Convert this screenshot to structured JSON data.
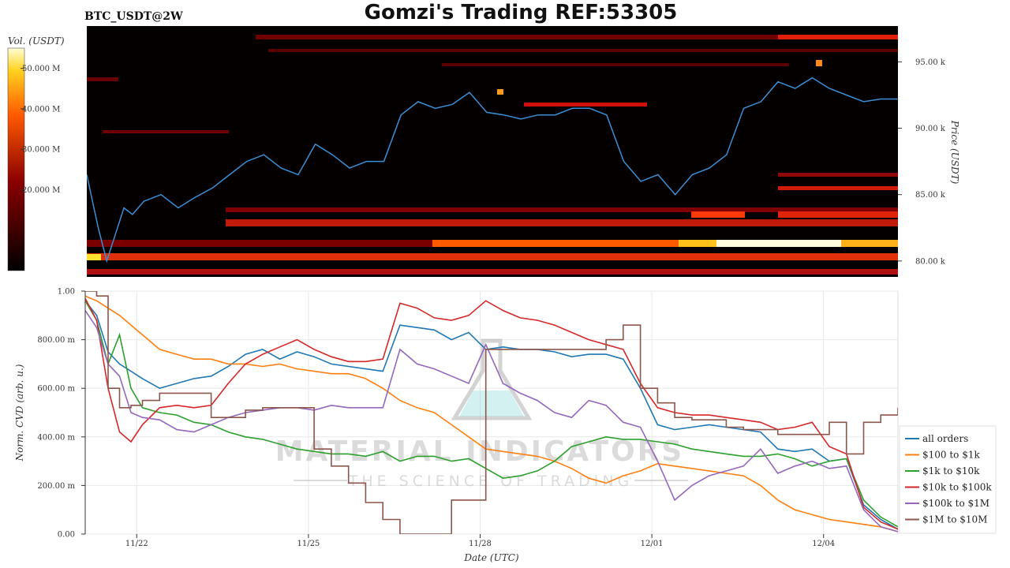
{
  "title": "Gomzi's Trading REF:53305",
  "subtitle": "BTC_USDT@2W",
  "watermark": {
    "main": "MATERIAL INDICATORS",
    "sub": "THE SCIENCE OF TRADING"
  },
  "chart_data": [
    {
      "type": "heatmap",
      "panel": "top",
      "ylabel": "Price (USDT)",
      "ylim": [
        78800,
        97700
      ],
      "yticks": [
        80000,
        85000,
        90000,
        95000
      ],
      "ytick_labels": [
        "80.00 k",
        "85.00 k",
        "90.00 k",
        "95.00 k"
      ],
      "colorbar": {
        "label": "Vol. (USDT)",
        "range": [
          0,
          55000000
        ],
        "ticks": [
          20000000,
          30000000,
          40000000,
          50000000
        ],
        "tick_labels": [
          "20.000 M",
          "30.000 M",
          "40.000 M",
          "50.000 M"
        ]
      },
      "price_series": {
        "name": "price",
        "color": "#3a8fd6",
        "x": [
          0,
          0.1,
          0.2,
          0.35,
          0.5,
          0.65,
          0.8,
          1.0,
          1.3,
          1.6,
          1.9,
          2.2,
          2.5,
          2.8,
          3.1,
          3.4,
          3.7,
          4.0,
          4.3,
          4.6,
          4.9,
          5.2,
          5.5,
          5.8,
          6.1,
          6.4,
          6.7,
          7.0,
          7.3,
          7.6,
          7.9,
          8.2,
          8.5,
          8.8,
          9.1,
          9.4,
          9.7,
          10.0,
          10.3,
          10.6,
          10.9,
          11.2,
          11.5,
          11.8,
          12.1,
          12.4,
          12.7,
          13.0,
          13.3,
          13.6,
          13.9,
          14.2
        ],
        "y": [
          86500,
          84500,
          82500,
          80000,
          82000,
          84000,
          83500,
          84500,
          85000,
          84000,
          84800,
          85500,
          86500,
          87500,
          88000,
          87000,
          86500,
          88800,
          88000,
          87000,
          87500,
          87500,
          91000,
          92000,
          91500,
          91800,
          92700,
          91200,
          91000,
          90700,
          91000,
          91000,
          91500,
          91500,
          91000,
          87500,
          86000,
          86500,
          85000,
          86500,
          87000,
          88000,
          91500,
          92000,
          93500,
          93000,
          93800,
          93000,
          92500,
          92000,
          92200,
          92200
        ]
      },
      "xlim": [
        0,
        14.2
      ]
    },
    {
      "type": "line",
      "panel": "bottom",
      "xlabel": "Date (UTC)",
      "ylabel": "Norm. CVD (arb. u.)",
      "xlim": [
        0,
        14.2
      ],
      "ylim": [
        0,
        1
      ],
      "x_ticks": [
        0.9,
        3.9,
        6.9,
        9.9,
        12.9
      ],
      "x_tick_labels": [
        "11/22",
        "11/25",
        "11/28",
        "12/01",
        "12/04"
      ],
      "yticks": [
        0,
        0.2,
        0.4,
        0.6,
        0.8,
        1
      ],
      "ytick_labels": [
        "0.00",
        "200.00 m",
        "400.00 m",
        "600.00 m",
        "800.00 m",
        "1.00"
      ],
      "x": [
        0,
        0.2,
        0.4,
        0.6,
        0.8,
        1.0,
        1.3,
        1.6,
        1.9,
        2.2,
        2.5,
        2.8,
        3.1,
        3.4,
        3.7,
        4.0,
        4.3,
        4.6,
        4.9,
        5.2,
        5.5,
        5.8,
        6.1,
        6.4,
        6.7,
        7.0,
        7.3,
        7.6,
        7.9,
        8.2,
        8.5,
        8.8,
        9.1,
        9.4,
        9.7,
        10.0,
        10.3,
        10.6,
        10.9,
        11.2,
        11.5,
        11.8,
        12.1,
        12.4,
        12.7,
        13.0,
        13.3,
        13.6,
        13.9,
        14.2
      ],
      "series": [
        {
          "name": "all orders",
          "color": "#1f77b4",
          "values": [
            0.96,
            0.9,
            0.75,
            0.7,
            0.67,
            0.64,
            0.6,
            0.62,
            0.64,
            0.65,
            0.69,
            0.74,
            0.76,
            0.72,
            0.75,
            0.73,
            0.7,
            0.69,
            0.68,
            0.67,
            0.86,
            0.85,
            0.84,
            0.8,
            0.83,
            0.76,
            0.77,
            0.76,
            0.76,
            0.75,
            0.73,
            0.74,
            0.74,
            0.72,
            0.6,
            0.45,
            0.43,
            0.44,
            0.45,
            0.44,
            0.43,
            0.42,
            0.35,
            0.34,
            0.35,
            0.3,
            0.31,
            0.12,
            0.06,
            0.02
          ]
        },
        {
          "name": "$100 to $1k",
          "color": "#ff7f0e",
          "values": [
            0.98,
            0.96,
            0.93,
            0.9,
            0.86,
            0.82,
            0.76,
            0.74,
            0.72,
            0.72,
            0.7,
            0.7,
            0.69,
            0.7,
            0.68,
            0.67,
            0.66,
            0.66,
            0.64,
            0.6,
            0.55,
            0.52,
            0.5,
            0.45,
            0.4,
            0.35,
            0.34,
            0.33,
            0.32,
            0.3,
            0.27,
            0.23,
            0.21,
            0.24,
            0.26,
            0.29,
            0.28,
            0.27,
            0.26,
            0.25,
            0.24,
            0.2,
            0.14,
            0.1,
            0.08,
            0.06,
            0.05,
            0.04,
            0.03,
            0.01
          ]
        },
        {
          "name": "$1k to $10k",
          "color": "#2ca02c",
          "values": [
            0.96,
            0.88,
            0.7,
            0.82,
            0.6,
            0.52,
            0.5,
            0.49,
            0.46,
            0.45,
            0.42,
            0.4,
            0.39,
            0.37,
            0.35,
            0.34,
            0.33,
            0.33,
            0.32,
            0.34,
            0.3,
            0.32,
            0.32,
            0.3,
            0.31,
            0.27,
            0.23,
            0.24,
            0.26,
            0.3,
            0.36,
            0.38,
            0.4,
            0.39,
            0.39,
            0.38,
            0.37,
            0.35,
            0.34,
            0.33,
            0.32,
            0.32,
            0.33,
            0.31,
            0.28,
            0.3,
            0.31,
            0.14,
            0.07,
            0.03
          ]
        },
        {
          "name": "$10k to $100k",
          "color": "#d62728",
          "values": [
            0.97,
            0.88,
            0.6,
            0.42,
            0.38,
            0.45,
            0.52,
            0.53,
            0.52,
            0.53,
            0.62,
            0.7,
            0.74,
            0.77,
            0.8,
            0.76,
            0.73,
            0.71,
            0.71,
            0.72,
            0.95,
            0.93,
            0.89,
            0.88,
            0.9,
            0.96,
            0.92,
            0.89,
            0.88,
            0.86,
            0.83,
            0.8,
            0.78,
            0.76,
            0.62,
            0.52,
            0.5,
            0.49,
            0.49,
            0.48,
            0.47,
            0.46,
            0.43,
            0.44,
            0.46,
            0.36,
            0.33,
            0.11,
            0.05,
            0.02
          ]
        },
        {
          "name": "$100k to $1M",
          "color": "#9467bd",
          "values": [
            0.92,
            0.85,
            0.7,
            0.65,
            0.5,
            0.48,
            0.47,
            0.43,
            0.42,
            0.45,
            0.48,
            0.5,
            0.51,
            0.52,
            0.52,
            0.51,
            0.53,
            0.52,
            0.52,
            0.52,
            0.76,
            0.7,
            0.68,
            0.65,
            0.62,
            0.78,
            0.62,
            0.58,
            0.55,
            0.5,
            0.48,
            0.55,
            0.53,
            0.46,
            0.44,
            0.3,
            0.14,
            0.2,
            0.24,
            0.26,
            0.28,
            0.35,
            0.25,
            0.28,
            0.3,
            0.27,
            0.28,
            0.1,
            0.03,
            0.01
          ]
        },
        {
          "name": "$1M to $10M",
          "color": "#8c564b",
          "steps": true,
          "values": [
            1.0,
            0.98,
            0.6,
            0.52,
            0.53,
            0.55,
            0.58,
            0.58,
            0.58,
            0.48,
            0.48,
            0.51,
            0.52,
            0.52,
            0.52,
            0.35,
            0.28,
            0.21,
            0.13,
            0.06,
            0.0,
            0.0,
            0.0,
            0.14,
            0.14,
            0.76,
            0.76,
            0.76,
            0.76,
            0.76,
            0.76,
            0.76,
            0.8,
            0.86,
            0.6,
            0.54,
            0.48,
            0.47,
            0.47,
            0.44,
            0.43,
            0.43,
            0.41,
            0.41,
            0.41,
            0.46,
            0.33,
            0.46,
            0.49,
            0.52
          ]
        }
      ],
      "legend_position": "right"
    }
  ]
}
